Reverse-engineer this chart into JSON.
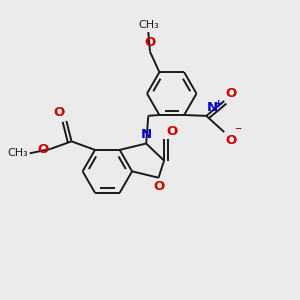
{
  "bg_color": "#ebebeb",
  "bond_color": "#1a1a1a",
  "bond_width": 1.4,
  "figsize": [
    3.0,
    3.0
  ],
  "dpi": 100,
  "xlim": [
    -3.5,
    3.5
  ],
  "ylim": [
    -3.5,
    3.5
  ]
}
